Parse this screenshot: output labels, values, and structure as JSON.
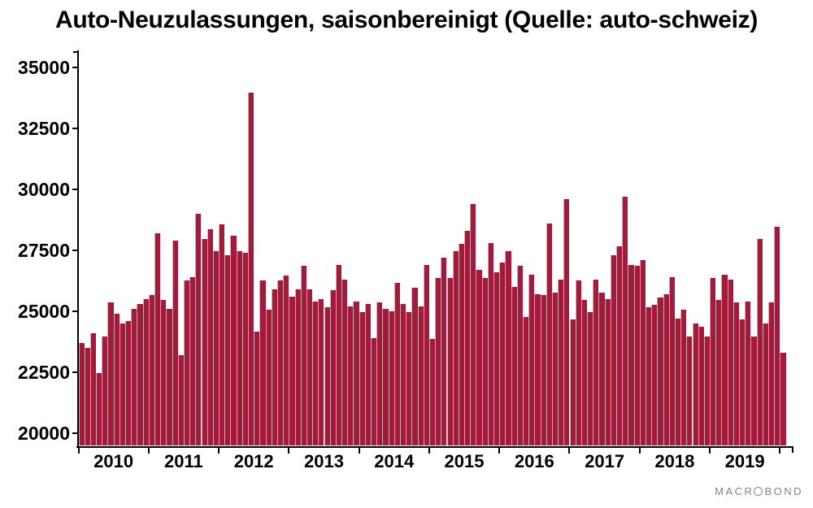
{
  "title": "Auto-Neuzulassungen, saisonbereinigt (Quelle: auto-schweiz)",
  "logo": {
    "left_text": "MACR",
    "right_text": "BOND"
  },
  "y_axis": {
    "tick_labels": [
      "35000",
      "32500",
      "30000",
      "27500",
      "25000",
      "22500",
      "20000"
    ]
  },
  "x_axis": {
    "year_labels": [
      "2010",
      "2011",
      "2012",
      "2013",
      "2014",
      "2015",
      "2016",
      "2017",
      "2018",
      "2019"
    ]
  },
  "colors": {
    "bar": "#A11C3B",
    "bar_separator": "#D9A3AF",
    "axis": "#000000",
    "logo": "#838383",
    "background": "#FFFFFF"
  },
  "chart_data": {
    "type": "bar",
    "title": "Auto-Neuzulassungen, saisonbereinigt (Quelle: auto-schweiz)",
    "xlabel": "",
    "ylabel": "",
    "x_start": "2010-01",
    "x_end": "2020-01",
    "frequency": "monthly",
    "categories_years": [
      "2010",
      "2011",
      "2012",
      "2013",
      "2014",
      "2015",
      "2016",
      "2017",
      "2018",
      "2019"
    ],
    "y_ticks": [
      20000,
      22500,
      25000,
      27500,
      30000,
      32500,
      35000
    ],
    "ylim": [
      19480,
      35680
    ],
    "grid": false,
    "legend": "none",
    "bar_color": "#A11C3B",
    "series": [
      {
        "name": "Auto-Neuzulassungen, saisonbereinigt",
        "values": [
          23700,
          23500,
          24100,
          22450,
          23950,
          25350,
          24900,
          24500,
          24600,
          25100,
          25300,
          25500,
          25650,
          28200,
          25450,
          25100,
          27900,
          23200,
          26250,
          26400,
          29000,
          27950,
          28350,
          27450,
          28550,
          27300,
          28100,
          27450,
          27400,
          33950,
          24150,
          26250,
          25050,
          25900,
          26250,
          26450,
          25600,
          25900,
          26850,
          25900,
          25400,
          25500,
          25150,
          25850,
          26900,
          26300,
          25200,
          25400,
          24950,
          25300,
          23900,
          25350,
          25100,
          25000,
          26150,
          25300,
          24950,
          25950,
          25200,
          26900,
          23850,
          26350,
          27200,
          26350,
          27450,
          27750,
          28300,
          29400,
          26700,
          26350,
          27800,
          26600,
          27000,
          27450,
          26000,
          26850,
          24750,
          26500,
          25700,
          25650,
          28600,
          25750,
          26300,
          29600,
          24650,
          26250,
          25450,
          24950,
          26300,
          25750,
          25500,
          27300,
          27650,
          29700,
          26900,
          26850,
          27100,
          25150,
          25250,
          25550,
          25700,
          26400,
          24700,
          25050,
          23950,
          24500,
          24350,
          23950,
          26350,
          25450,
          26500,
          26300,
          25350,
          24650,
          25400,
          23950,
          27950,
          24500,
          25350,
          28450,
          23300
        ]
      }
    ]
  }
}
